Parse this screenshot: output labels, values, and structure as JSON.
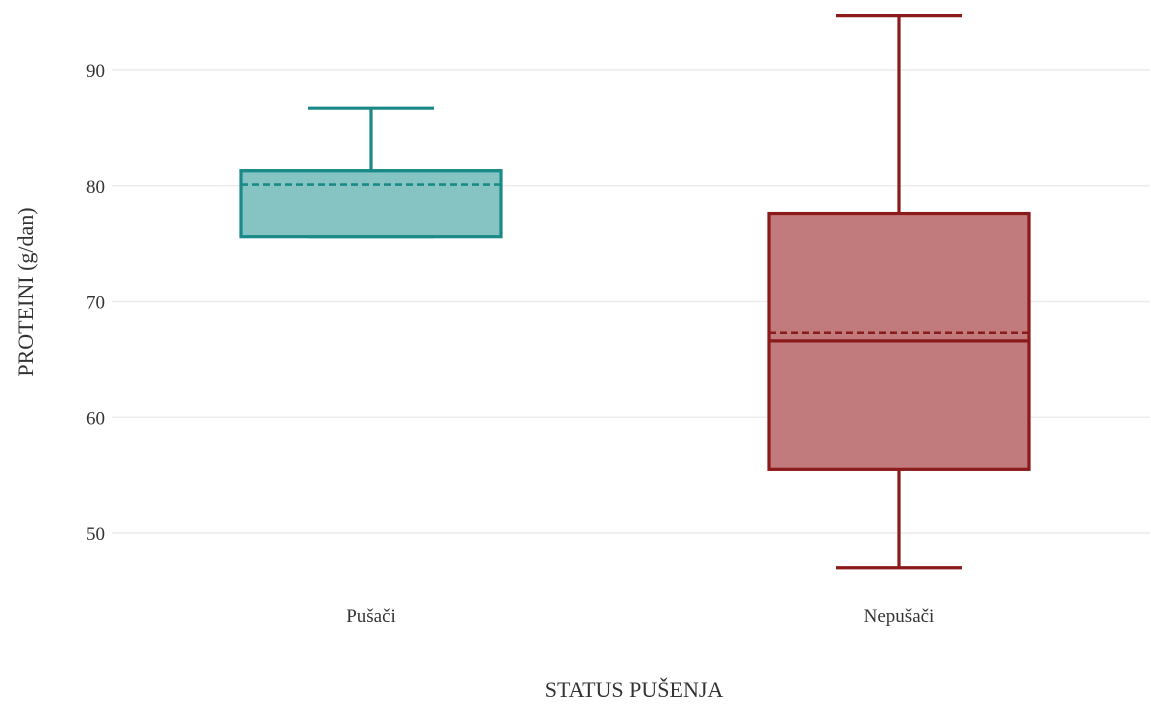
{
  "chart_data": {
    "type": "box",
    "xlabel": "STATUS PUŠENJA",
    "ylabel": "PROTEINI (g/dan)",
    "ylim": [
      45,
      95
    ],
    "yticks": [
      50,
      60,
      70,
      80,
      90
    ],
    "grid": true,
    "categories": [
      "Pušači",
      "Nepušači"
    ],
    "series": [
      {
        "category": "Pušači",
        "min": 75.6,
        "q1": 75.6,
        "median": 81.3,
        "mean": 80.1,
        "q3": 81.3,
        "max": 86.7,
        "color": "#1a8a88",
        "fill": "#85c4c2"
      },
      {
        "category": "Nepušači",
        "min": 47.0,
        "q1": 55.5,
        "median": 66.6,
        "mean": 67.3,
        "q3": 77.6,
        "max": 94.7,
        "color": "#8b1a1a",
        "fill": "#c27b7d"
      }
    ]
  }
}
